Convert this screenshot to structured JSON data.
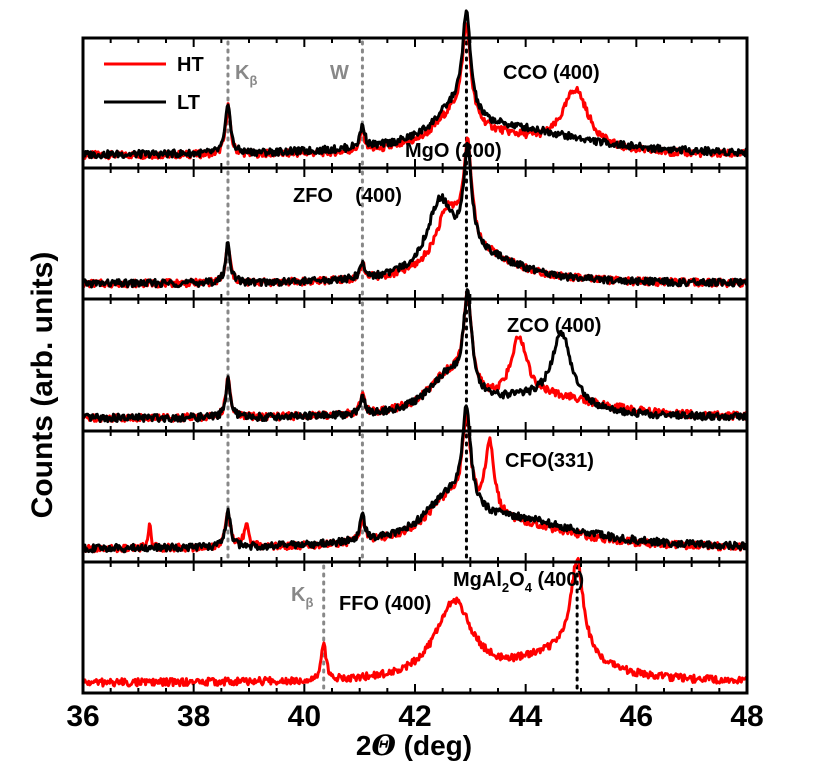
{
  "chart_data": {
    "type": "line",
    "xlabel_main": "2",
    "xlabel_theta": "Θ",
    "xlabel_unit": " (deg)",
    "ylabel": "Counts (arb. units)",
    "xlim": [
      36,
      48
    ],
    "x_ticks": [
      "36",
      "38",
      "40",
      "42",
      "44",
      "46",
      "48"
    ],
    "legend": {
      "placement": "top-left of top panel",
      "entries": [
        {
          "name": "HT",
          "color": "#ff0000"
        },
        {
          "name": "LT",
          "color": "#000000"
        }
      ]
    },
    "reference_lines": [
      {
        "x": 38.62,
        "color": "#888888",
        "style": "dotted",
        "label": "K",
        "sub": "β",
        "panels": [
          0,
          1,
          2,
          3
        ]
      },
      {
        "x": 41.05,
        "color": "#888888",
        "style": "dotted",
        "label": "W",
        "panels": [
          0,
          1,
          2,
          3
        ]
      },
      {
        "x": 42.93,
        "color": "#000000",
        "style": "dotted",
        "label": "MgO (200)",
        "panels": [
          0,
          1,
          2,
          3
        ]
      },
      {
        "x": 40.35,
        "color": "#888888",
        "style": "dotted",
        "label": "K",
        "sub": "β",
        "panels": [
          4
        ]
      },
      {
        "x": 44.93,
        "color": "#000000",
        "style": "dotted",
        "label": "MgAl2O4 (400)",
        "panels": [
          4
        ]
      }
    ],
    "panels": [
      {
        "label": "CCO (400)",
        "series": [
          {
            "name": "HT",
            "color": "#ff0000",
            "baseline": 0.1,
            "peaks": [
              [
                38.62,
                0.4,
                0.05
              ],
              [
                41.05,
                0.16,
                0.05
              ],
              [
                42.93,
                0.76,
                0.09
              ],
              [
                42.7,
                0.26,
                0.45
              ],
              [
                43.5,
                0.12,
                1.1
              ],
              [
                44.9,
                0.48,
                0.28
              ]
            ]
          },
          {
            "name": "LT",
            "color": "#000000",
            "baseline": 0.1,
            "peaks": [
              [
                38.62,
                0.42,
                0.05
              ],
              [
                41.05,
                0.18,
                0.05
              ],
              [
                42.93,
                0.8,
                0.09
              ],
              [
                42.7,
                0.26,
                0.45
              ],
              [
                43.8,
                0.2,
                1.6
              ]
            ]
          }
        ]
      },
      {
        "label": "ZFO    (400)",
        "series": [
          {
            "name": "HT",
            "color": "#ff0000",
            "baseline": 0.12,
            "peaks": [
              [
                38.62,
                0.3,
                0.05
              ],
              [
                41.05,
                0.12,
                0.05
              ],
              [
                42.95,
                0.8,
                0.09
              ],
              [
                42.6,
                0.45,
                0.28
              ],
              [
                43.2,
                0.2,
                0.9
              ]
            ]
          },
          {
            "name": "LT",
            "color": "#000000",
            "baseline": 0.12,
            "peaks": [
              [
                38.62,
                0.32,
                0.05
              ],
              [
                41.05,
                0.12,
                0.05
              ],
              [
                42.95,
                0.8,
                0.09
              ],
              [
                42.45,
                0.55,
                0.28
              ],
              [
                43.2,
                0.2,
                0.9
              ]
            ]
          }
        ]
      },
      {
        "label": "ZCO (400)",
        "series": [
          {
            "name": "HT",
            "color": "#ff0000",
            "baseline": 0.1,
            "peaks": [
              [
                38.62,
                0.3,
                0.05
              ],
              [
                41.05,
                0.14,
                0.05
              ],
              [
                42.95,
                0.75,
                0.09
              ],
              [
                42.6,
                0.3,
                0.45
              ],
              [
                43.88,
                0.5,
                0.18
              ],
              [
                44.5,
                0.15,
                1.2
              ]
            ]
          },
          {
            "name": "LT",
            "color": "#000000",
            "baseline": 0.1,
            "peaks": [
              [
                38.62,
                0.3,
                0.05
              ],
              [
                41.05,
                0.14,
                0.05
              ],
              [
                42.95,
                0.75,
                0.09
              ],
              [
                42.6,
                0.3,
                0.45
              ],
              [
                44.65,
                0.58,
                0.22
              ],
              [
                44.0,
                0.12,
                1.0
              ]
            ]
          }
        ]
      },
      {
        "label": "CFO(331)",
        "series": [
          {
            "name": "HT",
            "color": "#ff0000",
            "baseline": 0.1,
            "peaks": [
              [
                37.2,
                0.2,
                0.03
              ],
              [
                38.62,
                0.3,
                0.05
              ],
              [
                38.95,
                0.18,
                0.05
              ],
              [
                41.05,
                0.2,
                0.05
              ],
              [
                42.93,
                0.72,
                0.09
              ],
              [
                43.35,
                0.6,
                0.1
              ],
              [
                42.6,
                0.3,
                0.5
              ],
              [
                43.8,
                0.18,
                1.4
              ]
            ]
          },
          {
            "name": "LT",
            "color": "#000000",
            "baseline": 0.1,
            "peaks": [
              [
                38.62,
                0.3,
                0.05
              ],
              [
                41.05,
                0.2,
                0.05
              ],
              [
                42.93,
                0.8,
                0.09
              ],
              [
                42.6,
                0.3,
                0.5
              ],
              [
                43.8,
                0.22,
                1.5
              ]
            ]
          }
        ]
      },
      {
        "label": "FFO (400)",
        "series": [
          {
            "name": "HT",
            "color": "#ff0000",
            "baseline": 0.08,
            "peaks": [
              [
                40.35,
                0.3,
                0.05
              ],
              [
                42.7,
                0.62,
                0.4
              ],
              [
                44.93,
                0.78,
                0.14
              ],
              [
                44.6,
                0.22,
                0.9
              ]
            ]
          }
        ]
      }
    ]
  }
}
